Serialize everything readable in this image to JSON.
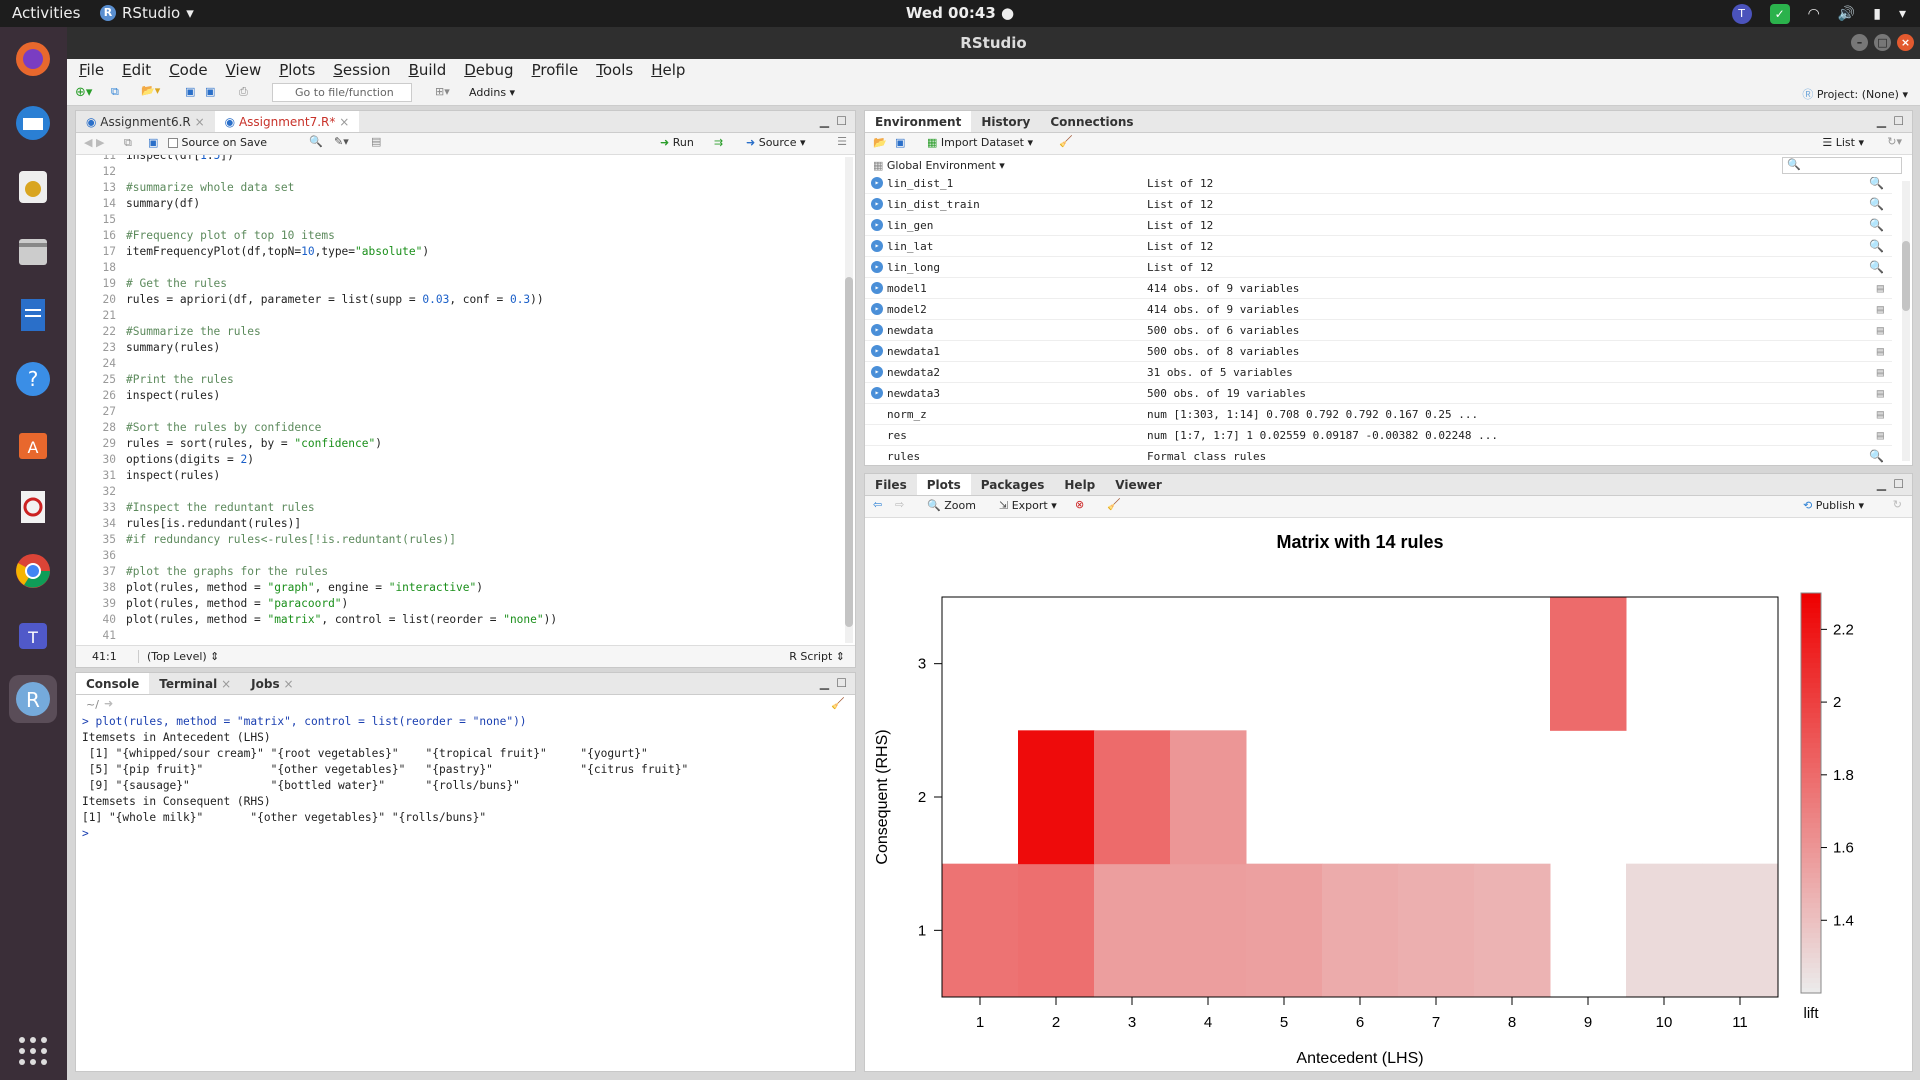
{
  "os": {
    "activities": "Activities",
    "app_name": "RStudio",
    "clock": "Wed 00:43 ●"
  },
  "window": {
    "title": "RStudio"
  },
  "menu": [
    "File",
    "Edit",
    "Code",
    "View",
    "Plots",
    "Session",
    "Build",
    "Debug",
    "Profile",
    "Tools",
    "Help"
  ],
  "toolbar": {
    "goto_placeholder": "Go to file/function",
    "addins": "Addins ▾",
    "project": "Project: (None) ▾"
  },
  "editor": {
    "tabs": [
      "Assignment6.R",
      "Assignment7.R*"
    ],
    "source_on_save": "Source on Save",
    "run": "Run",
    "source": "Source ▾",
    "lines": [
      {
        "n": "11",
        "t": "inspect(df[1:5])",
        "c": ""
      },
      {
        "n": "12",
        "t": "",
        "c": ""
      },
      {
        "n": "13",
        "t": "#summarize whole data set",
        "c": "cm"
      },
      {
        "n": "14",
        "t": "summary(df)",
        "c": ""
      },
      {
        "n": "15",
        "t": "",
        "c": ""
      },
      {
        "n": "16",
        "t": "#Frequency plot of top 10 items",
        "c": "cm"
      },
      {
        "n": "17",
        "t": "itemFrequencyPlot(df,topN=10,type=\"absolute\")",
        "c": ""
      },
      {
        "n": "18",
        "t": "",
        "c": ""
      },
      {
        "n": "19",
        "t": "# Get the rules",
        "c": "cm"
      },
      {
        "n": "20",
        "t": "rules = apriori(df, parameter = list(supp = 0.03, conf = 0.3))",
        "c": ""
      },
      {
        "n": "21",
        "t": "",
        "c": ""
      },
      {
        "n": "22",
        "t": "#Summarize the rules",
        "c": "cm"
      },
      {
        "n": "23",
        "t": "summary(rules)",
        "c": ""
      },
      {
        "n": "24",
        "t": "",
        "c": ""
      },
      {
        "n": "25",
        "t": "#Print the rules",
        "c": "cm"
      },
      {
        "n": "26",
        "t": "inspect(rules)",
        "c": ""
      },
      {
        "n": "27",
        "t": "",
        "c": ""
      },
      {
        "n": "28",
        "t": "#Sort the rules by confidence",
        "c": "cm"
      },
      {
        "n": "29",
        "t": "rules = sort(rules, by = \"confidence\")",
        "c": ""
      },
      {
        "n": "30",
        "t": "options(digits = 2)",
        "c": ""
      },
      {
        "n": "31",
        "t": "inspect(rules)",
        "c": ""
      },
      {
        "n": "32",
        "t": "",
        "c": ""
      },
      {
        "n": "33",
        "t": "#Inspect the reduntant rules",
        "c": "cm"
      },
      {
        "n": "34",
        "t": "rules[is.redundant(rules)]",
        "c": ""
      },
      {
        "n": "35",
        "t": "#if redundancy rules<-rules[!is.reduntant(rules)]",
        "c": "cm"
      },
      {
        "n": "36",
        "t": "",
        "c": ""
      },
      {
        "n": "37",
        "t": "#plot the graphs for the rules",
        "c": "cm"
      },
      {
        "n": "38",
        "t": "plot(rules, method = \"graph\", engine = \"interactive\")",
        "c": ""
      },
      {
        "n": "39",
        "t": "plot(rules, method = \"paracoord\")",
        "c": ""
      },
      {
        "n": "40",
        "t": "plot(rules, method = \"matrix\", control = list(reorder = \"none\"))",
        "c": ""
      },
      {
        "n": "41",
        "t": "",
        "c": ""
      }
    ],
    "status_pos": "41:1",
    "status_level": "(Top Level) ⇕",
    "status_type": "R Script ⇕"
  },
  "console": {
    "tabs": [
      "Console",
      "Terminal",
      "Jobs"
    ],
    "path": "~/",
    "lines": [
      "> plot(rules, method = \"matrix\", control = list(reorder = \"none\"))",
      "Itemsets in Antecedent (LHS)",
      " [1] \"{whipped/sour cream}\" \"{root vegetables}\"    \"{tropical fruit}\"     \"{yogurt}\"",
      " [5] \"{pip fruit}\"          \"{other vegetables}\"   \"{pastry}\"             \"{citrus fruit}\"",
      " [9] \"{sausage}\"            \"{bottled water}\"      \"{rolls/buns}\"",
      "Itemsets in Consequent (RHS)",
      "[1] \"{whole milk}\"       \"{other vegetables}\" \"{rolls/buns}\"",
      "> "
    ]
  },
  "environment": {
    "tabs": [
      "Environment",
      "History",
      "Connections"
    ],
    "import": "Import Dataset ▾",
    "list_mode": "List ▾",
    "scope": "Global Environment ▾",
    "rows": [
      {
        "name": "lin_dist_1",
        "value": "List of 12",
        "icon": "search"
      },
      {
        "name": "lin_dist_train",
        "value": "List of 12",
        "icon": "search"
      },
      {
        "name": "lin_gen",
        "value": "List of 12",
        "icon": "search"
      },
      {
        "name": "lin_lat",
        "value": "List of 12",
        "icon": "search"
      },
      {
        "name": "lin_long",
        "value": "List of 12",
        "icon": "search"
      },
      {
        "name": "model1",
        "value": "414 obs. of 9 variables",
        "icon": "grid"
      },
      {
        "name": "model2",
        "value": "414 obs. of 9 variables",
        "icon": "grid"
      },
      {
        "name": "newdata",
        "value": "500 obs. of 6 variables",
        "icon": "grid"
      },
      {
        "name": "newdata1",
        "value": "500 obs. of 8 variables",
        "icon": "grid"
      },
      {
        "name": "newdata2",
        "value": "31 obs. of 5 variables",
        "icon": "grid"
      },
      {
        "name": "newdata3",
        "value": "500 obs. of 19 variables",
        "icon": "grid"
      },
      {
        "name": "norm_z",
        "value": "num [1:303, 1:14] 0.708 0.792 0.792 0.167 0.25 ...",
        "icon": "grid"
      },
      {
        "name": "res",
        "value": "num [1:7, 1:7] 1 0.02559 0.09187 -0.00382 0.02248 ...",
        "icon": "grid"
      },
      {
        "name": "rules",
        "value": "Formal class rules",
        "icon": "search"
      }
    ]
  },
  "files": {
    "tabs": [
      "Files",
      "Plots",
      "Packages",
      "Help",
      "Viewer"
    ],
    "zoom": "Zoom",
    "export": "Export ▾",
    "publish": "Publish ▾"
  },
  "chart_data": {
    "type": "heatmap",
    "title": "Matrix with 14 rules",
    "xlabel": "Antecedent (LHS)",
    "ylabel": "Consequent (RHS)",
    "x": [
      1,
      2,
      3,
      4,
      5,
      6,
      7,
      8,
      9,
      10,
      11
    ],
    "y": [
      1,
      2,
      3
    ],
    "color_label": "lift",
    "color_ticks": [
      1.4,
      1.6,
      1.8,
      2,
      2.2
    ],
    "color_range": [
      1.2,
      2.3
    ],
    "cells": [
      {
        "x": 1,
        "y": 1,
        "lift": 1.76
      },
      {
        "x": 2,
        "y": 1,
        "lift": 1.78
      },
      {
        "x": 3,
        "y": 1,
        "lift": 1.56
      },
      {
        "x": 4,
        "y": 1,
        "lift": 1.56
      },
      {
        "x": 5,
        "y": 1,
        "lift": 1.55
      },
      {
        "x": 6,
        "y": 1,
        "lift": 1.5
      },
      {
        "x": 7,
        "y": 1,
        "lift": 1.48
      },
      {
        "x": 8,
        "y": 1,
        "lift": 1.46
      },
      {
        "x": 10,
        "y": 1,
        "lift": 1.28
      },
      {
        "x": 11,
        "y": 1,
        "lift": 1.28
      },
      {
        "x": 2,
        "y": 2,
        "lift": 2.25
      },
      {
        "x": 3,
        "y": 2,
        "lift": 1.8
      },
      {
        "x": 4,
        "y": 2,
        "lift": 1.6
      },
      {
        "x": 9,
        "y": 3,
        "lift": 1.8
      }
    ]
  }
}
